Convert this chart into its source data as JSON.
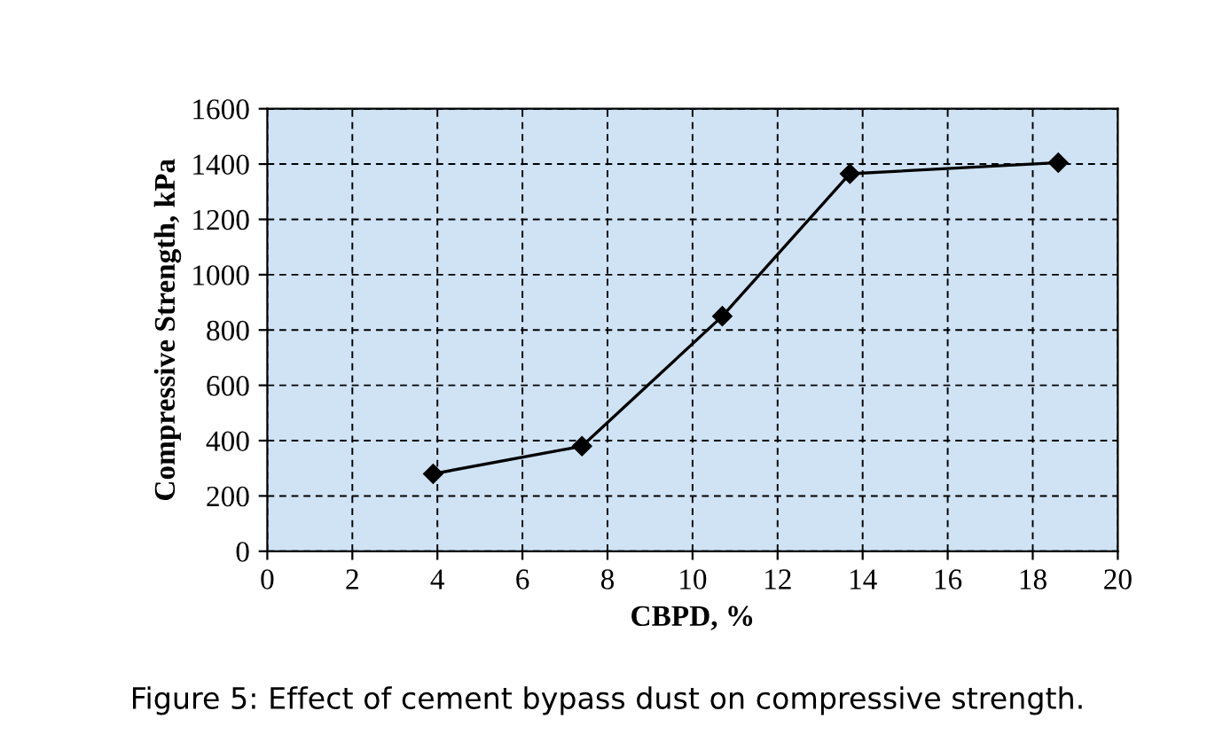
{
  "chart_data": {
    "type": "line",
    "xlabel": "CBPD, %",
    "ylabel": "Compressive Strength, kPa",
    "x": [
      3.9,
      7.4,
      10.7,
      13.7,
      18.6
    ],
    "series": [
      {
        "color": "#000000",
        "values": [
          280,
          380,
          850,
          1365,
          1405
        ]
      }
    ],
    "xlim": [
      0,
      20
    ],
    "xticks": [
      0,
      2,
      4,
      6,
      8,
      10,
      12,
      14,
      16,
      18,
      20
    ],
    "ylim": [
      0,
      1600
    ],
    "yticks": [
      0,
      200,
      400,
      600,
      800,
      1000,
      1200,
      1400,
      1600
    ],
    "grid": true,
    "marker": "diamond",
    "line_style": "solid",
    "annotations": [
      "Figure 5: Effect of cement bypass dust on compressive strength."
    ]
  }
}
